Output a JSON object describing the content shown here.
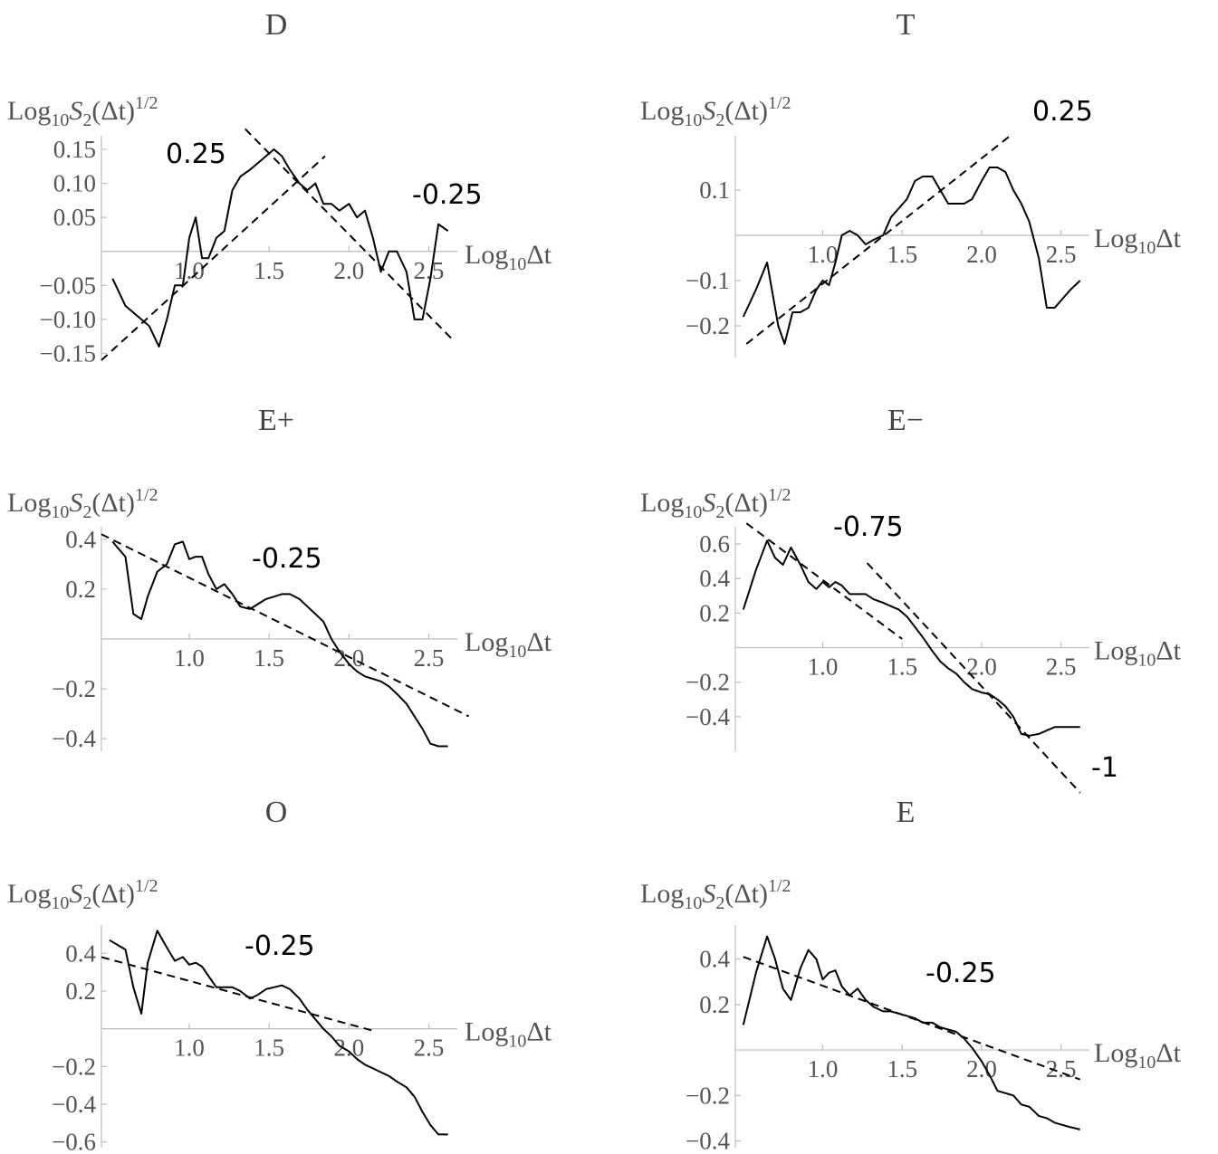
{
  "chart_data": [
    {
      "type": "line",
      "title": "D",
      "ylabel": "Log10S2(Δt)1/2",
      "xlabel": "Log10Δt",
      "xlim": [
        0.45,
        2.65
      ],
      "ylim": [
        -0.16,
        0.17
      ],
      "xticks": [
        1.0,
        1.5,
        2.0,
        2.5
      ],
      "xtick_labels": [
        "1.0",
        "1.5",
        "2.0",
        "2.5"
      ],
      "yticks": [
        -0.15,
        -0.1,
        -0.05,
        0.05,
        0.1,
        0.15
      ],
      "ytick_labels": [
        "−0.15",
        "−0.10",
        "−0.05",
        "0.05",
        "0.10",
        "0.15"
      ],
      "series": [
        {
          "x": [
            0.52,
            0.6,
            0.7,
            0.75,
            0.81,
            0.86,
            0.91,
            0.96,
            1.0,
            1.04,
            1.08,
            1.12,
            1.17,
            1.22,
            1.27,
            1.32,
            1.38,
            1.43,
            1.48,
            1.53,
            1.58,
            1.63,
            1.69,
            1.74,
            1.79,
            1.84,
            1.89,
            1.94,
            2.0,
            2.05,
            2.1,
            2.15,
            2.2,
            2.25,
            2.3,
            2.36,
            2.41,
            2.46,
            2.51,
            2.56,
            2.62
          ],
          "y": [
            -0.04,
            -0.08,
            -0.1,
            -0.11,
            -0.14,
            -0.1,
            -0.05,
            -0.05,
            0.02,
            0.05,
            -0.01,
            -0.01,
            0.02,
            0.03,
            0.09,
            0.11,
            0.12,
            0.13,
            0.14,
            0.15,
            0.14,
            0.12,
            0.1,
            0.09,
            0.1,
            0.07,
            0.07,
            0.06,
            0.07,
            0.05,
            0.06,
            0.02,
            -0.03,
            0.0,
            0.0,
            -0.03,
            -0.1,
            -0.1,
            -0.04,
            0.04,
            0.03
          ]
        }
      ],
      "fits": [
        {
          "slope_label": "0.25",
          "points": [
            [
              0.45,
              -0.16
            ],
            [
              1.85,
              0.14
            ]
          ]
        },
        {
          "slope_label": "-0.25",
          "points": [
            [
              1.35,
              0.18
            ],
            [
              2.65,
              -0.13
            ]
          ]
        }
      ]
    },
    {
      "type": "line",
      "title": "T",
      "ylabel": "Log10S2(Δt)1/2",
      "xlabel": "Log10Δt",
      "xlim": [
        0.45,
        2.65
      ],
      "ylim": [
        -0.27,
        0.22
      ],
      "xticks": [
        1.0,
        1.5,
        2.0,
        2.5
      ],
      "xtick_labels": [
        "1.0",
        "1.5",
        "2.0",
        "2.5"
      ],
      "yticks": [
        -0.2,
        -0.1,
        0.1
      ],
      "ytick_labels": [
        "−0.2",
        "−0.1",
        "0.1"
      ],
      "series": [
        {
          "x": [
            0.5,
            0.58,
            0.65,
            0.72,
            0.76,
            0.81,
            0.86,
            0.91,
            0.96,
            1.0,
            1.04,
            1.08,
            1.12,
            1.17,
            1.22,
            1.27,
            1.32,
            1.38,
            1.43,
            1.48,
            1.53,
            1.58,
            1.63,
            1.69,
            1.74,
            1.79,
            1.84,
            1.89,
            1.94,
            2.0,
            2.05,
            2.1,
            2.15,
            2.2,
            2.25,
            2.3,
            2.36,
            2.41,
            2.46,
            2.51,
            2.56,
            2.62
          ],
          "y": [
            -0.18,
            -0.12,
            -0.06,
            -0.2,
            -0.24,
            -0.17,
            -0.17,
            -0.16,
            -0.12,
            -0.1,
            -0.11,
            -0.06,
            0.0,
            0.01,
            0.0,
            -0.02,
            -0.01,
            0.0,
            0.04,
            0.06,
            0.08,
            0.12,
            0.13,
            0.13,
            0.1,
            0.07,
            0.07,
            0.07,
            0.08,
            0.12,
            0.15,
            0.15,
            0.14,
            0.1,
            0.07,
            0.03,
            -0.05,
            -0.16,
            -0.16,
            -0.14,
            -0.12,
            -0.1
          ],
          "x_note": ""
        }
      ],
      "fits": [
        {
          "slope_label": "0.25",
          "points": [
            [
              0.52,
              -0.24
            ],
            [
              2.18,
              0.22
            ]
          ]
        }
      ]
    },
    {
      "type": "line",
      "title": "E+",
      "ylabel": "Log10S2(Δt)1/2",
      "xlabel": "Log10Δt",
      "xlim": [
        0.45,
        2.65
      ],
      "ylim": [
        -0.45,
        0.45
      ],
      "xticks": [
        1.0,
        1.5,
        2.0,
        2.5
      ],
      "xtick_labels": [
        "1.0",
        "1.5",
        "2.0",
        "2.5"
      ],
      "yticks": [
        -0.4,
        -0.2,
        0.2,
        0.4
      ],
      "ytick_labels": [
        "−0.4",
        "−0.2",
        "0.2",
        "0.4"
      ],
      "series": [
        {
          "x": [
            0.52,
            0.6,
            0.65,
            0.7,
            0.74,
            0.8,
            0.86,
            0.91,
            0.96,
            1.0,
            1.04,
            1.08,
            1.12,
            1.17,
            1.22,
            1.27,
            1.32,
            1.38,
            1.43,
            1.48,
            1.53,
            1.58,
            1.63,
            1.69,
            1.74,
            1.79,
            1.84,
            1.89,
            1.94,
            2.0,
            2.05,
            2.1,
            2.15,
            2.2,
            2.25,
            2.3,
            2.36,
            2.41,
            2.46,
            2.51,
            2.56,
            2.62
          ],
          "y": [
            0.39,
            0.33,
            0.1,
            0.08,
            0.17,
            0.27,
            0.3,
            0.38,
            0.39,
            0.32,
            0.33,
            0.33,
            0.26,
            0.2,
            0.22,
            0.18,
            0.13,
            0.12,
            0.14,
            0.16,
            0.17,
            0.18,
            0.18,
            0.16,
            0.13,
            0.1,
            0.07,
            0.0,
            -0.05,
            -0.1,
            -0.13,
            -0.15,
            -0.16,
            -0.17,
            -0.19,
            -0.22,
            -0.26,
            -0.31,
            -0.36,
            -0.42,
            -0.43,
            -0.43
          ]
        }
      ],
      "fits": [
        {
          "slope_label": "-0.25",
          "points": [
            [
              0.45,
              0.42
            ],
            [
              2.75,
              -0.31
            ]
          ]
        }
      ]
    },
    {
      "type": "line",
      "title": "E−",
      "ylabel": "Log10S2(Δt)1/2",
      "xlabel": "Log10Δt",
      "xlim": [
        0.45,
        2.65
      ],
      "ylim": [
        -0.6,
        0.7
      ],
      "xticks": [
        1.0,
        1.5,
        2.0,
        2.5
      ],
      "xtick_labels": [
        "1.0",
        "1.5",
        "2.0",
        "2.5"
      ],
      "yticks": [
        -0.4,
        -0.2,
        0.2,
        0.4,
        0.6
      ],
      "ytick_labels": [
        "−0.4",
        "−0.2",
        "0.2",
        "0.4",
        "0.6"
      ],
      "series": [
        {
          "x": [
            0.5,
            0.58,
            0.65,
            0.7,
            0.75,
            0.8,
            0.86,
            0.91,
            0.96,
            1.0,
            1.04,
            1.08,
            1.12,
            1.17,
            1.22,
            1.27,
            1.32,
            1.38,
            1.43,
            1.48,
            1.53,
            1.58,
            1.63,
            1.69,
            1.74,
            1.79,
            1.84,
            1.89,
            1.94,
            2.0,
            2.05,
            2.1,
            2.15,
            2.2,
            2.25,
            2.3,
            2.36,
            2.41,
            2.46,
            2.51,
            2.56,
            2.62
          ],
          "y": [
            0.22,
            0.45,
            0.62,
            0.52,
            0.48,
            0.58,
            0.48,
            0.38,
            0.34,
            0.38,
            0.35,
            0.38,
            0.36,
            0.31,
            0.31,
            0.31,
            0.28,
            0.26,
            0.24,
            0.22,
            0.18,
            0.12,
            0.06,
            -0.02,
            -0.08,
            -0.12,
            -0.15,
            -0.2,
            -0.24,
            -0.26,
            -0.27,
            -0.3,
            -0.34,
            -0.4,
            -0.5,
            -0.51,
            -0.5,
            -0.48,
            -0.46,
            -0.46,
            -0.46,
            -0.46
          ]
        }
      ],
      "fits": [
        {
          "slope_label": "-0.75",
          "points": [
            [
              0.52,
              0.72
            ],
            [
              1.5,
              0.05
            ]
          ]
        },
        {
          "slope_label": "-1",
          "points": [
            [
              1.28,
              0.49
            ],
            [
              2.62,
              -0.84
            ]
          ]
        }
      ]
    },
    {
      "type": "line",
      "title": "O",
      "ylabel": "Log10S2(Δt)1/2",
      "xlabel": "Log10Δt",
      "xlim": [
        0.45,
        2.65
      ],
      "ylim": [
        -0.63,
        0.55
      ],
      "xticks": [
        1.0,
        1.5,
        2.0,
        2.5
      ],
      "xtick_labels": [
        "1.0",
        "1.5",
        "2.0",
        "2.5"
      ],
      "yticks": [
        -0.6,
        -0.4,
        -0.2,
        0.2,
        0.4
      ],
      "ytick_labels": [
        "−0.6",
        "−0.4",
        "−0.2",
        "0.2",
        "0.4"
      ],
      "series": [
        {
          "x": [
            0.5,
            0.6,
            0.65,
            0.7,
            0.74,
            0.8,
            0.86,
            0.91,
            0.96,
            1.0,
            1.04,
            1.08,
            1.12,
            1.17,
            1.22,
            1.27,
            1.32,
            1.38,
            1.43,
            1.48,
            1.53,
            1.58,
            1.63,
            1.69,
            1.74,
            1.79,
            1.84,
            1.89,
            1.94,
            2.0,
            2.05,
            2.1,
            2.15,
            2.2,
            2.25,
            2.3,
            2.36,
            2.41,
            2.46,
            2.51,
            2.56,
            2.62
          ],
          "y": [
            0.47,
            0.42,
            0.22,
            0.08,
            0.35,
            0.52,
            0.43,
            0.36,
            0.38,
            0.34,
            0.35,
            0.33,
            0.28,
            0.22,
            0.22,
            0.22,
            0.2,
            0.16,
            0.18,
            0.21,
            0.22,
            0.23,
            0.21,
            0.16,
            0.1,
            0.05,
            0.0,
            -0.04,
            -0.09,
            -0.12,
            -0.16,
            -0.19,
            -0.21,
            -0.23,
            -0.25,
            -0.28,
            -0.31,
            -0.36,
            -0.44,
            -0.51,
            -0.56,
            -0.56
          ]
        }
      ],
      "fits": [
        {
          "slope_label": "-0.25",
          "points": [
            [
              0.45,
              0.38
            ],
            [
              2.15,
              -0.01
            ]
          ]
        }
      ]
    },
    {
      "type": "line",
      "title": "E",
      "ylabel": "Log10S2(Δt)1/2",
      "xlabel": "Log10Δt",
      "xlim": [
        0.45,
        2.65
      ],
      "ylim": [
        -0.43,
        0.55
      ],
      "xticks": [
        1.0,
        1.5,
        2.0,
        2.5
      ],
      "xtick_labels": [
        "1.0",
        "1.5",
        "2.0",
        "2.5"
      ],
      "yticks": [
        -0.4,
        -0.2,
        0.2,
        0.4
      ],
      "ytick_labels": [
        "−0.4",
        "−0.2",
        "0.2",
        "0.4"
      ],
      "series": [
        {
          "x": [
            0.5,
            0.58,
            0.65,
            0.7,
            0.75,
            0.8,
            0.86,
            0.91,
            0.96,
            1.0,
            1.04,
            1.08,
            1.12,
            1.17,
            1.22,
            1.27,
            1.32,
            1.38,
            1.43,
            1.48,
            1.53,
            1.58,
            1.63,
            1.69,
            1.74,
            1.79,
            1.84,
            1.89,
            1.94,
            2.0,
            2.05,
            2.1,
            2.15,
            2.2,
            2.25,
            2.3,
            2.36,
            2.41,
            2.46,
            2.51,
            2.56,
            2.62
          ],
          "y": [
            0.11,
            0.34,
            0.5,
            0.4,
            0.27,
            0.22,
            0.36,
            0.44,
            0.4,
            0.31,
            0.34,
            0.35,
            0.28,
            0.24,
            0.27,
            0.22,
            0.19,
            0.17,
            0.17,
            0.16,
            0.15,
            0.14,
            0.12,
            0.12,
            0.1,
            0.09,
            0.08,
            0.05,
            0.01,
            -0.05,
            -0.11,
            -0.18,
            -0.19,
            -0.2,
            -0.24,
            -0.25,
            -0.29,
            -0.3,
            -0.32,
            -0.33,
            -0.34,
            -0.35
          ]
        }
      ],
      "fits": [
        {
          "slope_label": "-0.25",
          "points": [
            [
              0.5,
              0.41
            ],
            [
              2.62,
              -0.13
            ]
          ]
        }
      ]
    }
  ]
}
